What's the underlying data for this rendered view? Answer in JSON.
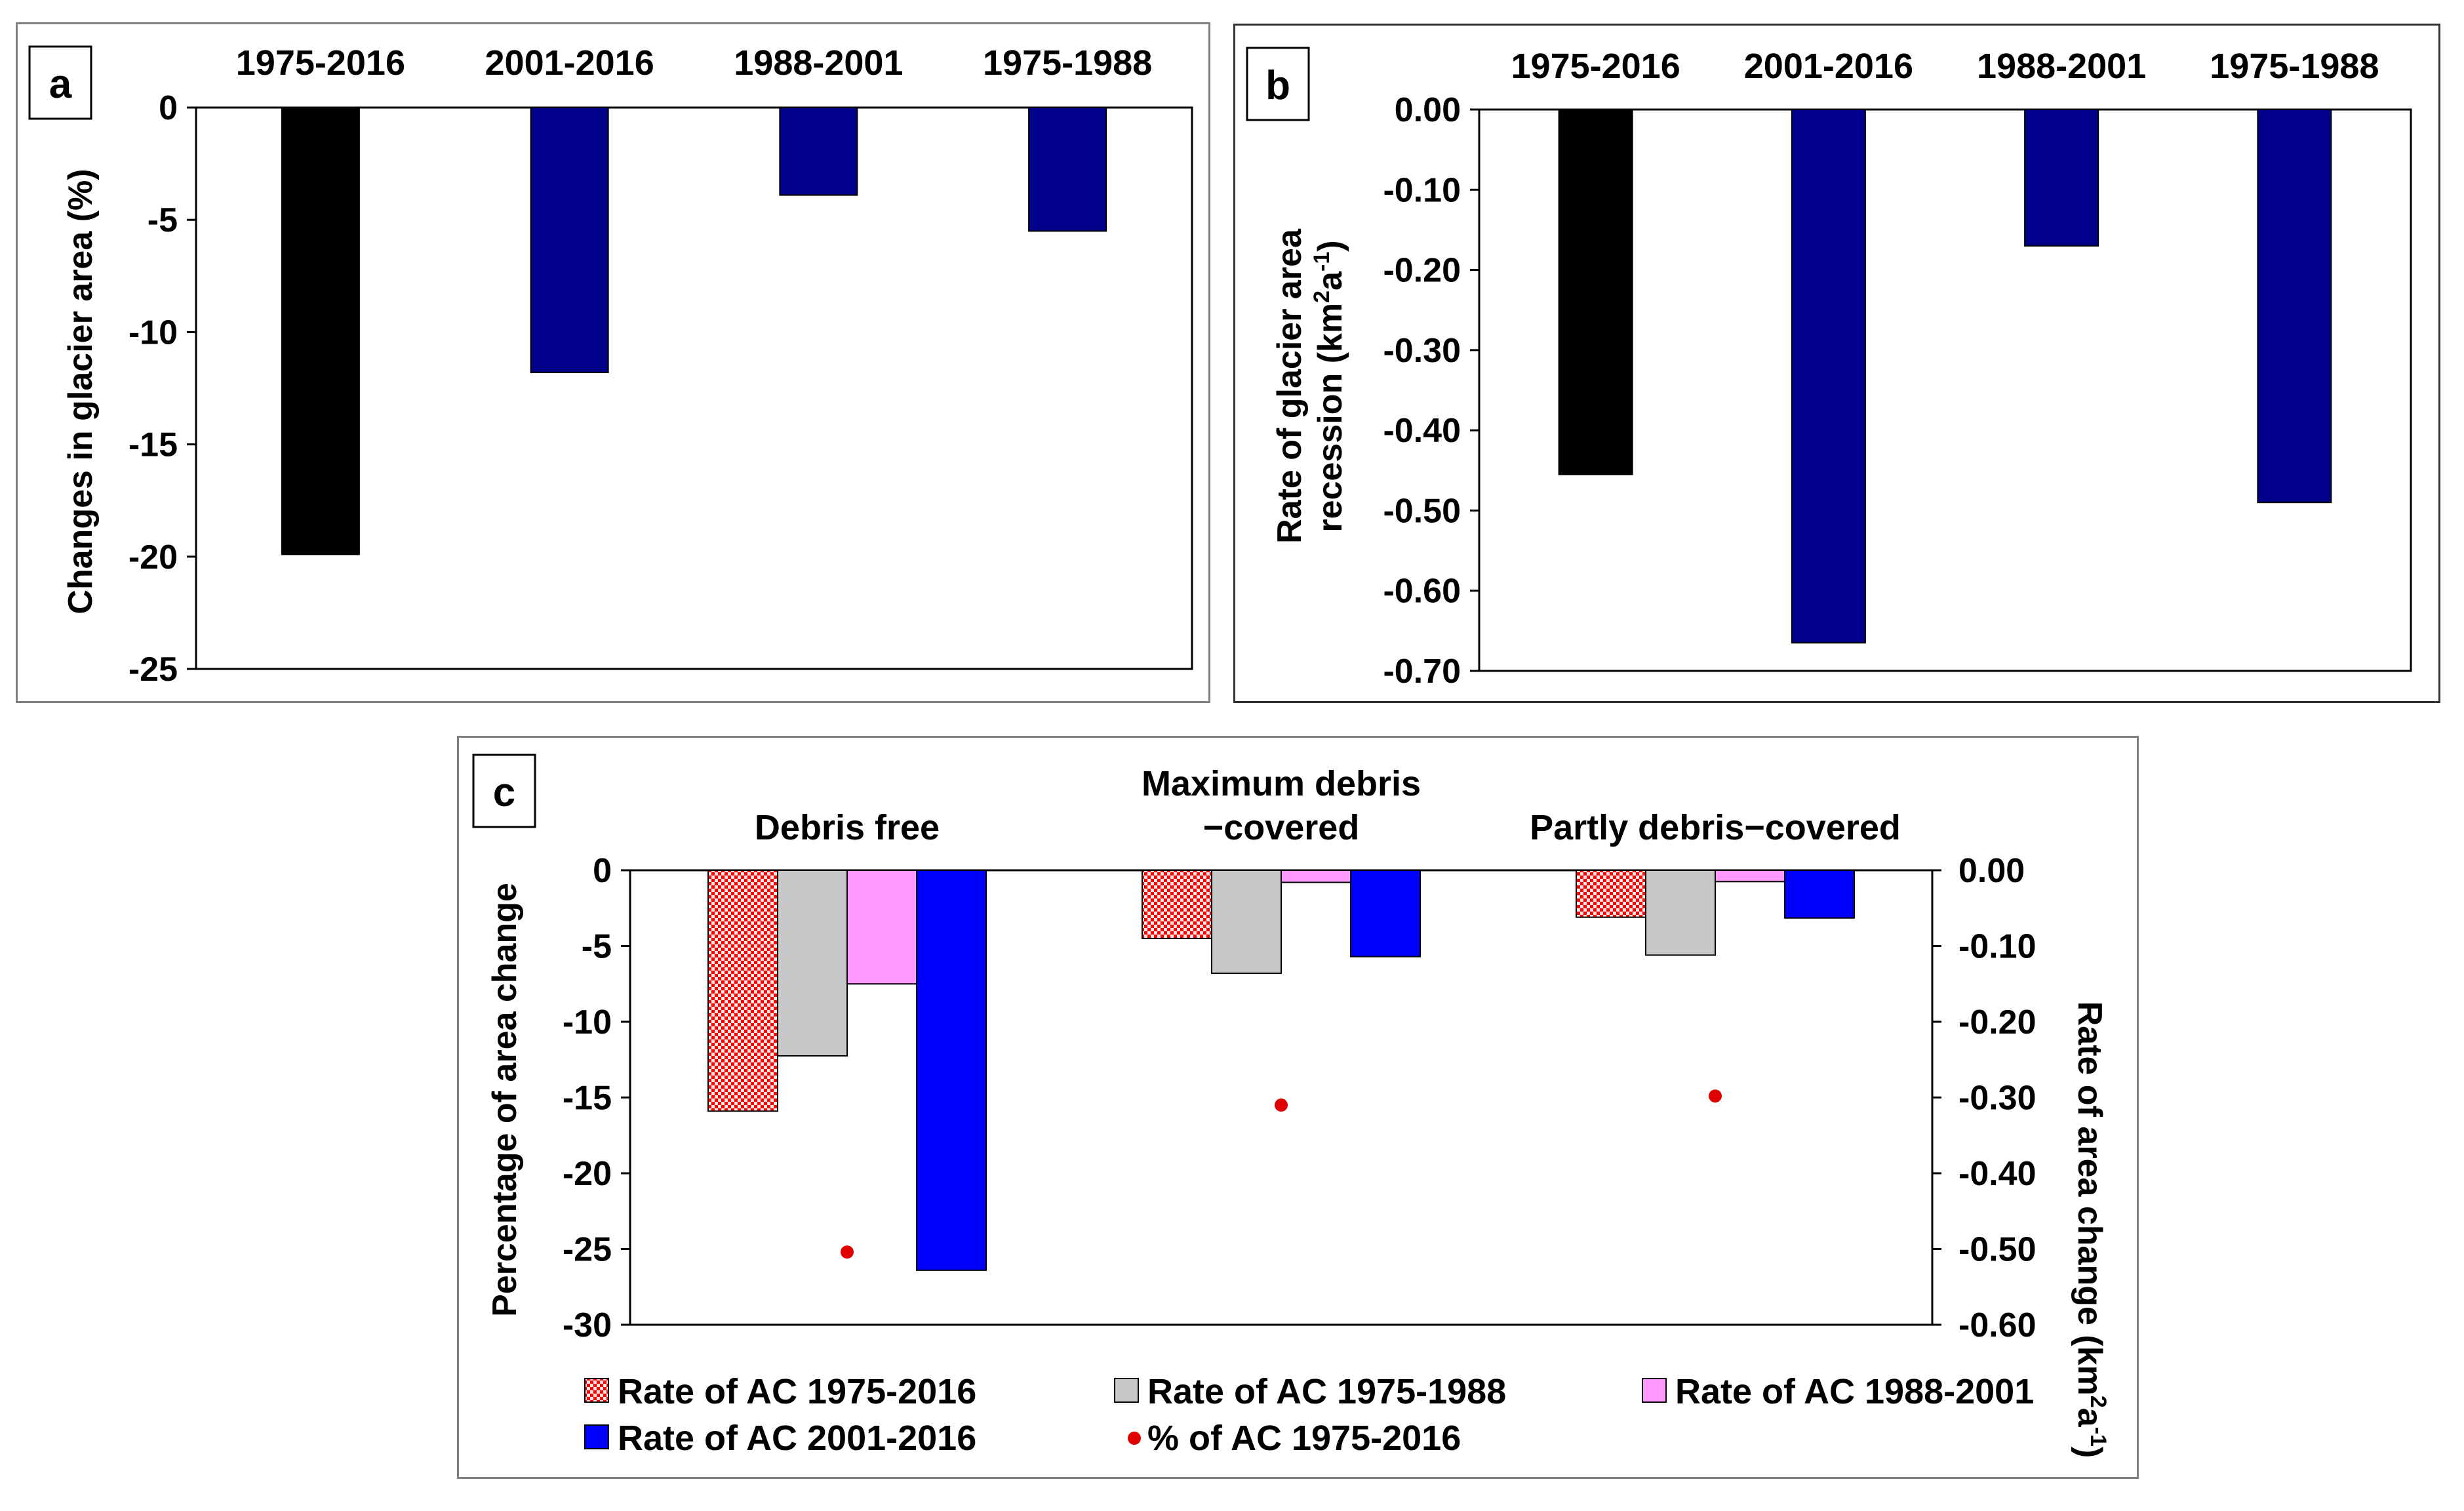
{
  "colors": {
    "black": "#000000",
    "navy": "#00008B",
    "red": "#FF0000",
    "gray": "#C8C8C8",
    "pink": "#FF99FF",
    "blue": "#0000FF",
    "dot": "#E00000"
  },
  "chart_data": [
    {
      "panel_label": "a",
      "type": "bar",
      "categories": [
        "1975-2016",
        "2001-2016",
        "1988-2001",
        "1975-1988"
      ],
      "values": [
        -19.9,
        -11.8,
        -3.9,
        -5.5
      ],
      "bar_colors": [
        "black",
        "navy",
        "navy",
        "navy"
      ],
      "ylabel": "Changes in glacier area (%)",
      "ylim": [
        -25,
        0
      ],
      "yticks": [
        "0",
        "-5",
        "-10",
        "-15",
        "-20",
        "-25"
      ],
      "ytick_values": [
        0,
        -5,
        -10,
        -15,
        -20,
        -25
      ]
    },
    {
      "panel_label": "b",
      "type": "bar",
      "categories": [
        "1975-2016",
        "2001-2016",
        "1988-2001",
        "1975-1988"
      ],
      "values": [
        -0.455,
        -0.665,
        -0.17,
        -0.49
      ],
      "bar_colors": [
        "black",
        "navy",
        "navy",
        "navy"
      ],
      "ylabel_line1": "Rate of glacier area",
      "ylabel_line2": "recession (km",
      "ylabel_sup1": "2",
      "ylabel_mid": "a",
      "ylabel_sup2": "-1",
      "ylabel_end": ")",
      "ylim": [
        -0.7,
        0
      ],
      "yticks": [
        "0.00",
        "-0.10",
        "-0.20",
        "-0.30",
        "-0.40",
        "-0.50",
        "-0.60",
        "-0.70"
      ],
      "ytick_values": [
        0,
        -0.1,
        -0.2,
        -0.3,
        -0.4,
        -0.5,
        -0.6,
        -0.7
      ]
    },
    {
      "panel_label": "c",
      "type": "bar",
      "categories": [
        "Debris free",
        "Maximum debris\n−covered",
        "Partly debris−covered"
      ],
      "series": [
        {
          "name": "Rate of AC 1975-2016",
          "color": "red",
          "pattern": true,
          "axis": "right",
          "values": [
            -0.318,
            -0.09,
            -0.062
          ]
        },
        {
          "name": "Rate of AC 1975-1988",
          "color": "gray",
          "axis": "right",
          "values": [
            -0.245,
            -0.136,
            -0.112
          ]
        },
        {
          "name": "Rate of AC 1988-2001",
          "color": "pink",
          "axis": "right",
          "values": [
            -0.15,
            -0.016,
            -0.015
          ]
        },
        {
          "name": "Rate of AC 2001-2016",
          "color": "blue",
          "axis": "right",
          "values": [
            -0.528,
            -0.114,
            -0.063
          ]
        },
        {
          "name": "% of AC 1975-2016",
          "color": "dot",
          "marker": "circle",
          "axis": "left",
          "values": [
            -25.2,
            -15.5,
            -14.9
          ]
        }
      ],
      "ylabel_left": "Percentage of area change",
      "ylim_left": [
        -30,
        0
      ],
      "yticks_left": [
        "0",
        "-5",
        "-10",
        "-15",
        "-20",
        "-25",
        "-30"
      ],
      "ytick_values_left": [
        0,
        -5,
        -10,
        -15,
        -20,
        -25,
        -30
      ],
      "ylabel_right_main": "Rate of area change (km",
      "ylabel_right_sup1": "2",
      "ylabel_right_mid": "a",
      "ylabel_right_sup2": "-1",
      "ylabel_right_end": ")",
      "ylim_right": [
        -0.6,
        0
      ],
      "yticks_right": [
        "0.00",
        "-0.10",
        "-0.20",
        "-0.30",
        "-0.40",
        "-0.50",
        "-0.60"
      ],
      "ytick_values_right": [
        0,
        -0.1,
        -0.2,
        -0.3,
        -0.4,
        -0.5,
        -0.6
      ],
      "legend_position": "bottom"
    }
  ]
}
